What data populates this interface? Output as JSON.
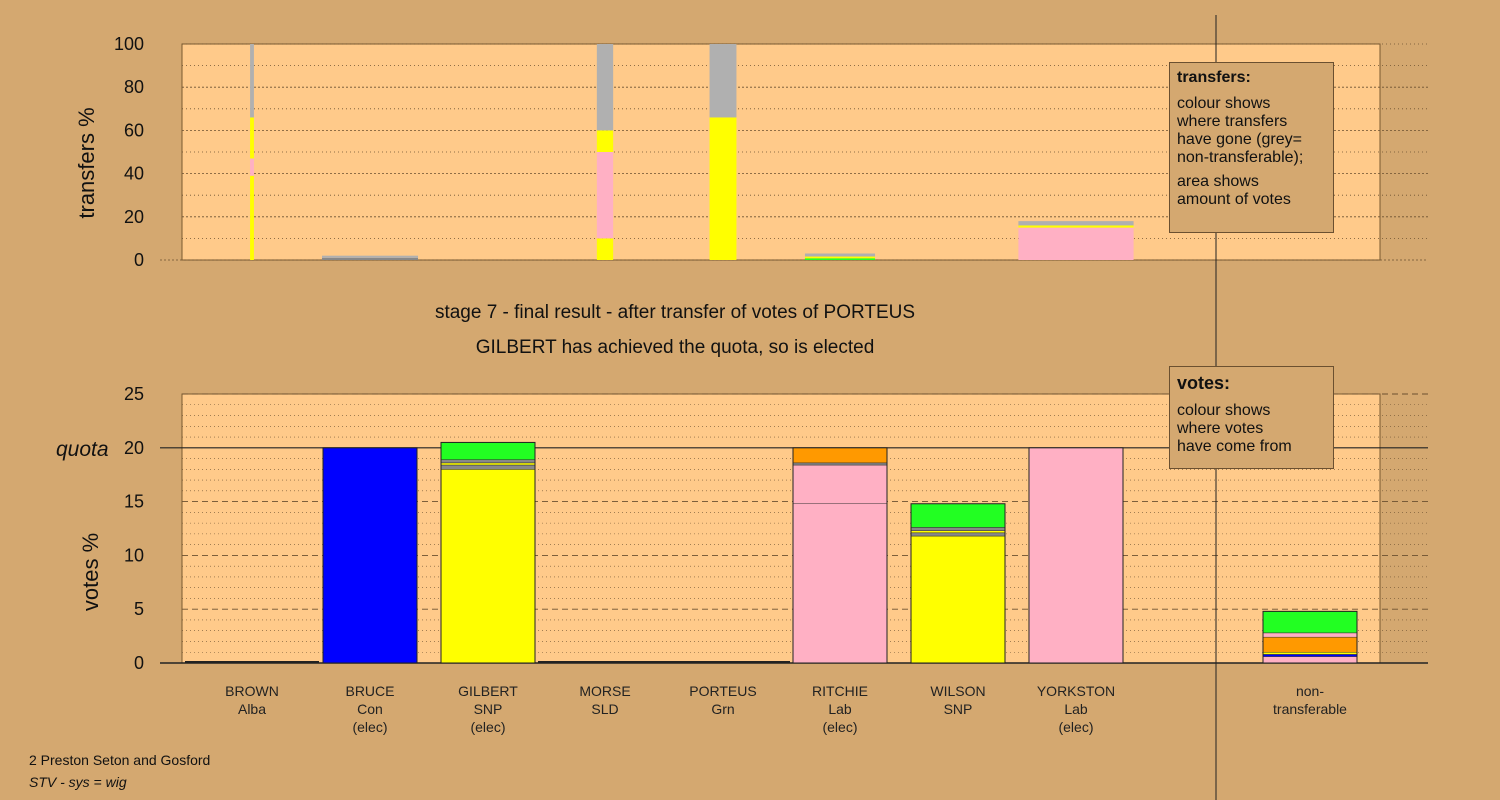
{
  "colors": {
    "background": "#d4a870",
    "plot_area": "#ffca8a",
    "non_transferable": "#b0b0b0",
    "Alba": "#f0f0f0",
    "Con": "#0000ff",
    "SNP": "#ffff00",
    "SLD": "#ff9900",
    "Grn": "#22ff22",
    "Lab": "#ffb0c4",
    "other": "#888888"
  },
  "stage_title": "stage 7 - final result - after transfer of votes of PORTEUS",
  "stage_subtitle": "GILBERT has achieved the quota, so is elected",
  "legend_transfers": {
    "title": "transfers:",
    "text1": "colour shows\nwhere transfers\nhave gone (grey=\nnon-transferable);",
    "text2": "area shows\namount of votes"
  },
  "legend_votes": {
    "title": "votes:",
    "text1": "colour shows\nwhere votes\nhave come from"
  },
  "footer": {
    "line1": "2 Preston Seton and Gosford",
    "line2": "STV - sys = wig"
  },
  "chart_data": [
    {
      "type": "bar",
      "name": "transfers",
      "ylabel": "transfers %",
      "ylim": [
        0,
        100
      ],
      "yticks": [
        0,
        20,
        40,
        60,
        80,
        100
      ],
      "bars": [
        {
          "candidate": "BROWN",
          "width_share": 0.04,
          "segments": [
            {
              "party": "SNP",
              "from": 0,
              "to": 39
            },
            {
              "party": "Lab",
              "from": 39,
              "to": 47
            },
            {
              "party": "SNP",
              "from": 47,
              "to": 66
            },
            {
              "party": "non_transferable",
              "from": 66,
              "to": 100
            }
          ]
        },
        {
          "candidate": "BRUCE",
          "width_share": 1.0,
          "segments": [
            {
              "party": "other",
              "from": 0,
              "to": 1
            },
            {
              "party": "non_transferable",
              "from": 1,
              "to": 2
            }
          ]
        },
        {
          "candidate": "GILBERT",
          "width_share": 0,
          "segments": []
        },
        {
          "candidate": "MORSE",
          "width_share": 0.17,
          "segments": [
            {
              "party": "SNP",
              "from": 0,
              "to": 10
            },
            {
              "party": "Lab",
              "from": 10,
              "to": 50
            },
            {
              "party": "SNP",
              "from": 50,
              "to": 60
            },
            {
              "party": "non_transferable",
              "from": 60,
              "to": 100
            }
          ]
        },
        {
          "candidate": "PORTEUS",
          "width_share": 0.28,
          "segments": [
            {
              "party": "SNP",
              "from": 0,
              "to": 66
            },
            {
              "party": "non_transferable",
              "from": 66,
              "to": 100
            }
          ]
        },
        {
          "candidate": "RITCHIE",
          "width_share": 0.73,
          "segments": [
            {
              "party": "Grn",
              "from": 0,
              "to": 0.8
            },
            {
              "party": "SNP",
              "from": 0.8,
              "to": 1.6
            },
            {
              "party": "non_transferable",
              "from": 1.6,
              "to": 3
            }
          ]
        },
        {
          "candidate": "WILSON",
          "width_share": 0,
          "segments": []
        },
        {
          "candidate": "YORKSTON",
          "width_share": 1.2,
          "segments": [
            {
              "party": "Lab",
              "from": 0,
              "to": 15
            },
            {
              "party": "SNP",
              "from": 15,
              "to": 16
            },
            {
              "party": "non_transferable",
              "from": 16,
              "to": 18
            }
          ]
        }
      ]
    },
    {
      "type": "bar",
      "name": "votes",
      "ylabel": "votes %",
      "ylim": [
        0,
        25
      ],
      "yticks": [
        0,
        5,
        10,
        15,
        20,
        25
      ],
      "quota": 20,
      "quota_label": "quota",
      "bars": [
        {
          "candidate": "BROWN",
          "segments": [
            {
              "party": "Alba",
              "from": 0,
              "to": 0.08
            }
          ]
        },
        {
          "candidate": "BRUCE",
          "segments": [
            {
              "party": "Con",
              "from": 0,
              "to": 20
            }
          ]
        },
        {
          "candidate": "GILBERT",
          "segments": [
            {
              "party": "SNP",
              "from": 0,
              "to": 18
            },
            {
              "party": "other",
              "from": 18,
              "to": 18.4
            },
            {
              "party": "SNP",
              "from": 18.4,
              "to": 18.6
            },
            {
              "party": "other",
              "from": 18.6,
              "to": 18.9
            },
            {
              "party": "Grn",
              "from": 18.9,
              "to": 20.5
            }
          ]
        },
        {
          "candidate": "MORSE",
          "segments": [
            {
              "party": "SLD",
              "from": 0,
              "to": 0.08
            }
          ]
        },
        {
          "candidate": "PORTEUS",
          "segments": [
            {
              "party": "Grn",
              "from": 0,
              "to": 0.08
            }
          ]
        },
        {
          "candidate": "RITCHIE",
          "segments": [
            {
              "party": "Lab",
              "from": 0,
              "to": 14.8
            },
            {
              "party": "Lab",
              "from": 14.8,
              "to": 18.4
            },
            {
              "party": "other",
              "from": 18.4,
              "to": 18.6
            },
            {
              "party": "SLD",
              "from": 18.6,
              "to": 20
            }
          ]
        },
        {
          "candidate": "WILSON",
          "segments": [
            {
              "party": "SNP",
              "from": 0,
              "to": 11.8
            },
            {
              "party": "other",
              "from": 11.8,
              "to": 12.1
            },
            {
              "party": "SNP",
              "from": 12.1,
              "to": 12.3
            },
            {
              "party": "other",
              "from": 12.3,
              "to": 12.6
            },
            {
              "party": "Grn",
              "from": 12.6,
              "to": 14.8
            }
          ]
        },
        {
          "candidate": "YORKSTON",
          "segments": [
            {
              "party": "Lab",
              "from": 0,
              "to": 20
            }
          ]
        },
        {
          "candidate": "non-transferable",
          "segments": [
            {
              "party": "Lab",
              "from": 0,
              "to": 0.6
            },
            {
              "party": "Con",
              "from": 0.6,
              "to": 0.8
            },
            {
              "party": "SNP",
              "from": 0.8,
              "to": 1.0
            },
            {
              "party": "SLD",
              "from": 1.0,
              "to": 2.4
            },
            {
              "party": "Lab",
              "from": 2.4,
              "to": 2.8
            },
            {
              "party": "Grn",
              "from": 2.8,
              "to": 4.8
            }
          ]
        }
      ]
    }
  ],
  "candidates": [
    {
      "name": "BROWN",
      "party": "Alba",
      "status": ""
    },
    {
      "name": "BRUCE",
      "party": "Con",
      "status": "(elec)"
    },
    {
      "name": "GILBERT",
      "party": "SNP",
      "status": "(elec)"
    },
    {
      "name": "MORSE",
      "party": "SLD",
      "status": ""
    },
    {
      "name": "PORTEUS",
      "party": "Grn",
      "status": ""
    },
    {
      "name": "RITCHIE",
      "party": "Lab",
      "status": "(elec)"
    },
    {
      "name": "WILSON",
      "party": "SNP",
      "status": ""
    },
    {
      "name": "YORKSTON",
      "party": "Lab",
      "status": "(elec)"
    },
    {
      "name": "non-",
      "party": "transferable",
      "status": ""
    }
  ]
}
